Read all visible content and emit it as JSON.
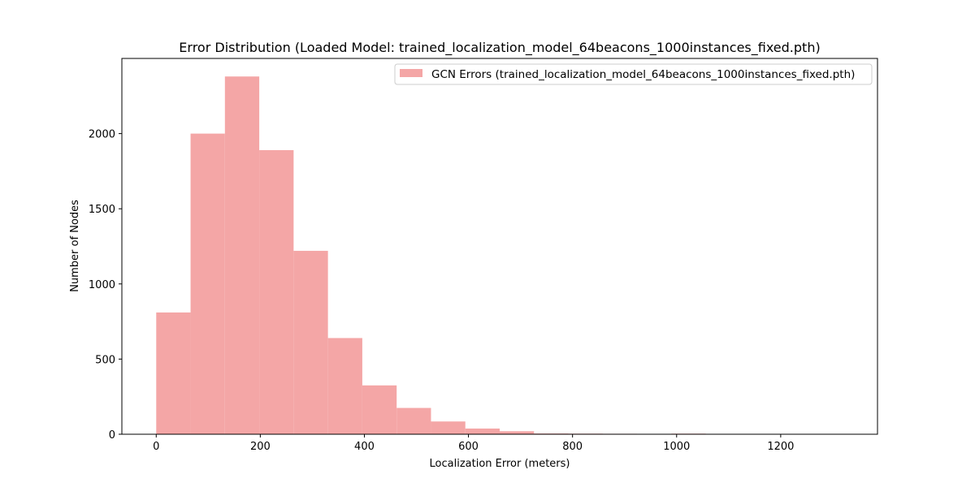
{
  "chart_data": {
    "type": "bar",
    "title": "Error Distribution (Loaded Model: trained_localization_model_64beacons_1000instances_fixed.pth)",
    "xlabel": "Localization Error (meters)",
    "ylabel": "Number of Nodes",
    "xlim": [
      -66,
      1386
    ],
    "ylim": [
      0,
      2500
    ],
    "bin_edges": [
      0,
      66,
      132,
      198,
      264,
      330,
      396,
      462,
      528,
      594,
      660,
      726,
      792,
      858,
      924,
      990,
      1056,
      1122,
      1188,
      1254,
      1320
    ],
    "values": [
      810,
      2000,
      2380,
      1890,
      1220,
      640,
      325,
      175,
      85,
      38,
      20,
      5,
      4,
      3,
      0,
      4,
      0,
      0,
      0,
      1
    ],
    "x_ticks": [
      0,
      200,
      400,
      600,
      800,
      1000,
      1200
    ],
    "y_ticks": [
      0,
      500,
      1000,
      1500,
      2000
    ],
    "series": [
      {
        "name": "GCN Errors (trained_localization_model_64beacons_1000instances_fixed.pth)",
        "color": "#f4a6a6"
      }
    ],
    "legend_position": "upper right",
    "grid": false
  }
}
